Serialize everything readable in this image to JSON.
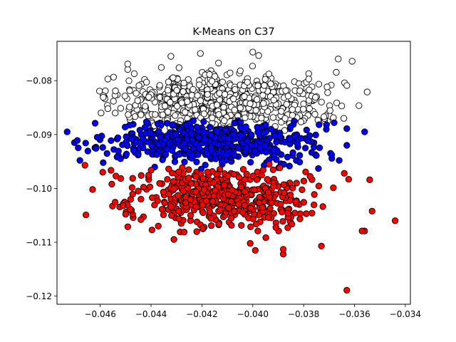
{
  "chart_data": {
    "type": "scatter",
    "title": "K-Means on C37",
    "xlabel": "",
    "ylabel": "",
    "xlim": [
      -0.0477,
      -0.0338
    ],
    "ylim": [
      -0.1215,
      -0.0727
    ],
    "xticks": [
      -0.046,
      -0.044,
      -0.042,
      -0.04,
      -0.038,
      -0.036,
      -0.034
    ],
    "xtick_labels": [
      "−0.046",
      "−0.044",
      "−0.042",
      "−0.040",
      "−0.038",
      "−0.036",
      "−0.034"
    ],
    "yticks": [
      -0.08,
      -0.09,
      -0.1,
      -0.11,
      -0.12
    ],
    "ytick_labels": [
      "−0.08",
      "−0.09",
      "−0.10",
      "−0.11",
      "−0.12"
    ],
    "grid": false,
    "legend": "none",
    "marker_edge_color": "#000000",
    "series": [
      {
        "color": "#ffffff",
        "center": [
          -0.0413,
          -0.0842
        ],
        "spread": [
          0.0021,
          0.0028
        ],
        "count": 600,
        "y_range": [
          -0.0893,
          -0.0745
        ],
        "x_range": [
          -0.0462,
          -0.0355
        ],
        "outliers": [
          [
            -0.04,
            -0.0747
          ],
          [
            -0.0457,
            -0.0797
          ],
          [
            -0.0429,
            -0.0776
          ],
          [
            -0.0378,
            -0.0787
          ],
          [
            -0.0378,
            -0.0797
          ],
          [
            -0.0363,
            -0.0809
          ],
          [
            -0.0355,
            -0.0821
          ],
          [
            -0.0365,
            -0.0847
          ],
          [
            -0.0372,
            -0.0867
          ],
          [
            -0.0457,
            -0.0852
          ],
          [
            -0.0449,
            -0.0863
          ],
          [
            -0.0454,
            -0.0819
          ]
        ]
      },
      {
        "color": "#0000ff",
        "center": [
          -0.0415,
          -0.0912
        ],
        "spread": [
          0.0019,
          0.002
        ],
        "count": 550,
        "y_range": [
          -0.0965,
          -0.0873
        ],
        "x_range": [
          -0.0473,
          -0.0362
        ],
        "outliers": [
          [
            -0.0473,
            -0.0895
          ],
          [
            -0.0469,
            -0.0911
          ],
          [
            -0.0462,
            -0.0879
          ],
          [
            -0.0459,
            -0.0924
          ],
          [
            -0.0468,
            -0.0948
          ],
          [
            -0.0452,
            -0.0945
          ],
          [
            -0.0363,
            -0.0889
          ],
          [
            -0.0356,
            -0.0895
          ],
          [
            -0.0363,
            -0.092
          ],
          [
            -0.0366,
            -0.0948
          ],
          [
            -0.0375,
            -0.0939
          ],
          [
            -0.0381,
            -0.0907
          ],
          [
            -0.0371,
            -0.0882
          ]
        ]
      },
      {
        "color": "#ff0000",
        "center": [
          -0.0413,
          -0.1015
        ],
        "spread": [
          0.0018,
          0.003
        ],
        "count": 500,
        "y_range": [
          -0.1125,
          -0.0955
        ],
        "x_range": [
          -0.0466,
          -0.0345
        ],
        "outliers": [
          [
            -0.0363,
            -0.1189
          ],
          [
            -0.0344,
            -0.106
          ],
          [
            -0.0356,
            -0.1079
          ],
          [
            -0.0357,
            -0.1079
          ],
          [
            -0.0354,
            -0.0984
          ],
          [
            -0.0364,
            -0.0972
          ],
          [
            -0.0373,
            -0.1107
          ],
          [
            -0.0388,
            -0.1122
          ],
          [
            -0.0388,
            -0.1113
          ],
          [
            -0.0401,
            -0.1102
          ],
          [
            -0.0399,
            -0.1115
          ],
          [
            -0.0463,
            -0.1002
          ],
          [
            -0.0466,
            -0.0957
          ],
          [
            -0.0459,
            -0.097
          ],
          [
            -0.0451,
            -0.1032
          ],
          [
            -0.045,
            -0.1048
          ],
          [
            -0.0444,
            -0.1058
          ],
          [
            -0.0427,
            -0.1081
          ]
        ]
      }
    ]
  }
}
